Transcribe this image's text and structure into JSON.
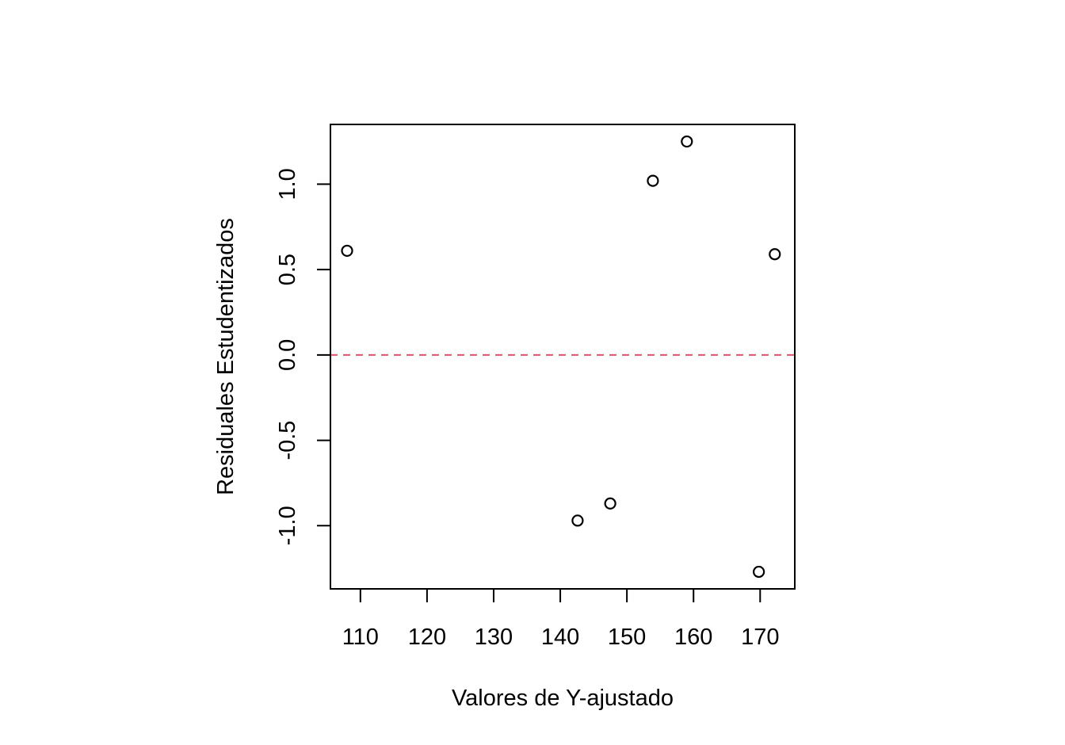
{
  "chart_data": {
    "type": "scatter",
    "title": "",
    "xlabel": "Valores de Y-ajustado",
    "ylabel": "Residuales Estudentizados",
    "xlim": [
      105.5,
      175.2
    ],
    "ylim": [
      -1.37,
      1.35
    ],
    "x_ticks": [
      110,
      120,
      130,
      140,
      150,
      160,
      170
    ],
    "y_ticks": [
      -1.0,
      -0.5,
      0.0,
      0.5,
      1.0
    ],
    "x_tick_labels": [
      "110",
      "120",
      "130",
      "140",
      "150",
      "160",
      "170"
    ],
    "y_tick_labels": [
      "-1.0",
      "-0.5",
      "0.0",
      "0.5",
      "1.0"
    ],
    "points": [
      {
        "x": 108.0,
        "y": 0.61
      },
      {
        "x": 142.6,
        "y": -0.97
      },
      {
        "x": 147.5,
        "y": -0.87
      },
      {
        "x": 153.9,
        "y": 1.02
      },
      {
        "x": 159.0,
        "y": 1.25
      },
      {
        "x": 169.8,
        "y": -1.27
      },
      {
        "x": 172.2,
        "y": 0.59
      }
    ],
    "reference_line": {
      "y": 0.0,
      "style": "dashed",
      "color": "#DF536B"
    },
    "grid": false,
    "legend": "none",
    "colors": {
      "points": "#000000",
      "axes": "#000000",
      "reference": "#DF536B"
    }
  }
}
